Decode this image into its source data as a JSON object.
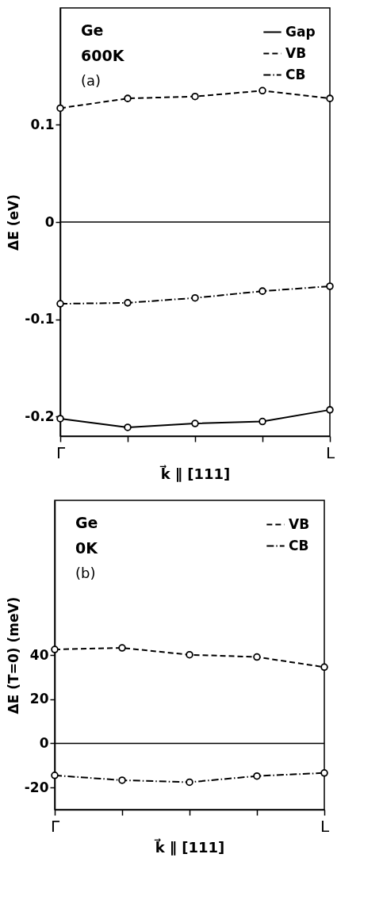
{
  "chart_data": [
    {
      "type": "line",
      "annotations": [
        "Ge",
        "600K",
        "(a)"
      ],
      "xlabel": "k⃗ ∥ [111]",
      "ylabel": "ΔE (eV)",
      "categories": [
        "Γ",
        null,
        null,
        null,
        "L"
      ],
      "series": [
        {
          "name": "Gap",
          "color": "#000000",
          "line_style": "solid",
          "values": [
            -0.202,
            -0.211,
            -0.207,
            -0.205,
            -0.193
          ]
        },
        {
          "name": "VB",
          "color": "#000000",
          "line_style": "dashed",
          "values": [
            0.117,
            0.127,
            0.129,
            0.135,
            0.127
          ]
        },
        {
          "name": "CB",
          "color": "#000000",
          "line_style": "dashdot",
          "values": [
            -0.084,
            -0.083,
            -0.078,
            -0.071,
            -0.066
          ]
        }
      ],
      "ylim": [
        -0.22,
        0.22
      ],
      "yticks": [
        -0.2,
        -0.1,
        0,
        0.1
      ],
      "ref_lines": [
        {
          "axis": "y",
          "value": 0
        }
      ],
      "grid": false,
      "legend": "top right",
      "marker": "circle"
    },
    {
      "type": "line",
      "annotations": [
        "Ge",
        "0K",
        "(b)"
      ],
      "xlabel": "k⃗ ∥ [111]",
      "ylabel": "ΔE (T=0) (meV)",
      "categories": [
        "Γ",
        null,
        null,
        null,
        "L"
      ],
      "series": [
        {
          "name": "VB",
          "color": "#000000",
          "line_style": "dashed",
          "values": [
            42.5,
            43.2,
            40.1,
            39.1,
            34.5
          ]
        },
        {
          "name": "CB",
          "color": "#000000",
          "line_style": "dashdot",
          "values": [
            -14.5,
            -16.7,
            -17.6,
            -14.8,
            -13.4
          ]
        }
      ],
      "ylim": [
        -30,
        110
      ],
      "yticks": [
        -20,
        0,
        20,
        40
      ],
      "ref_lines": [
        {
          "axis": "y",
          "value": 0
        }
      ],
      "grid": false,
      "legend": "top right",
      "marker": "circle"
    }
  ]
}
